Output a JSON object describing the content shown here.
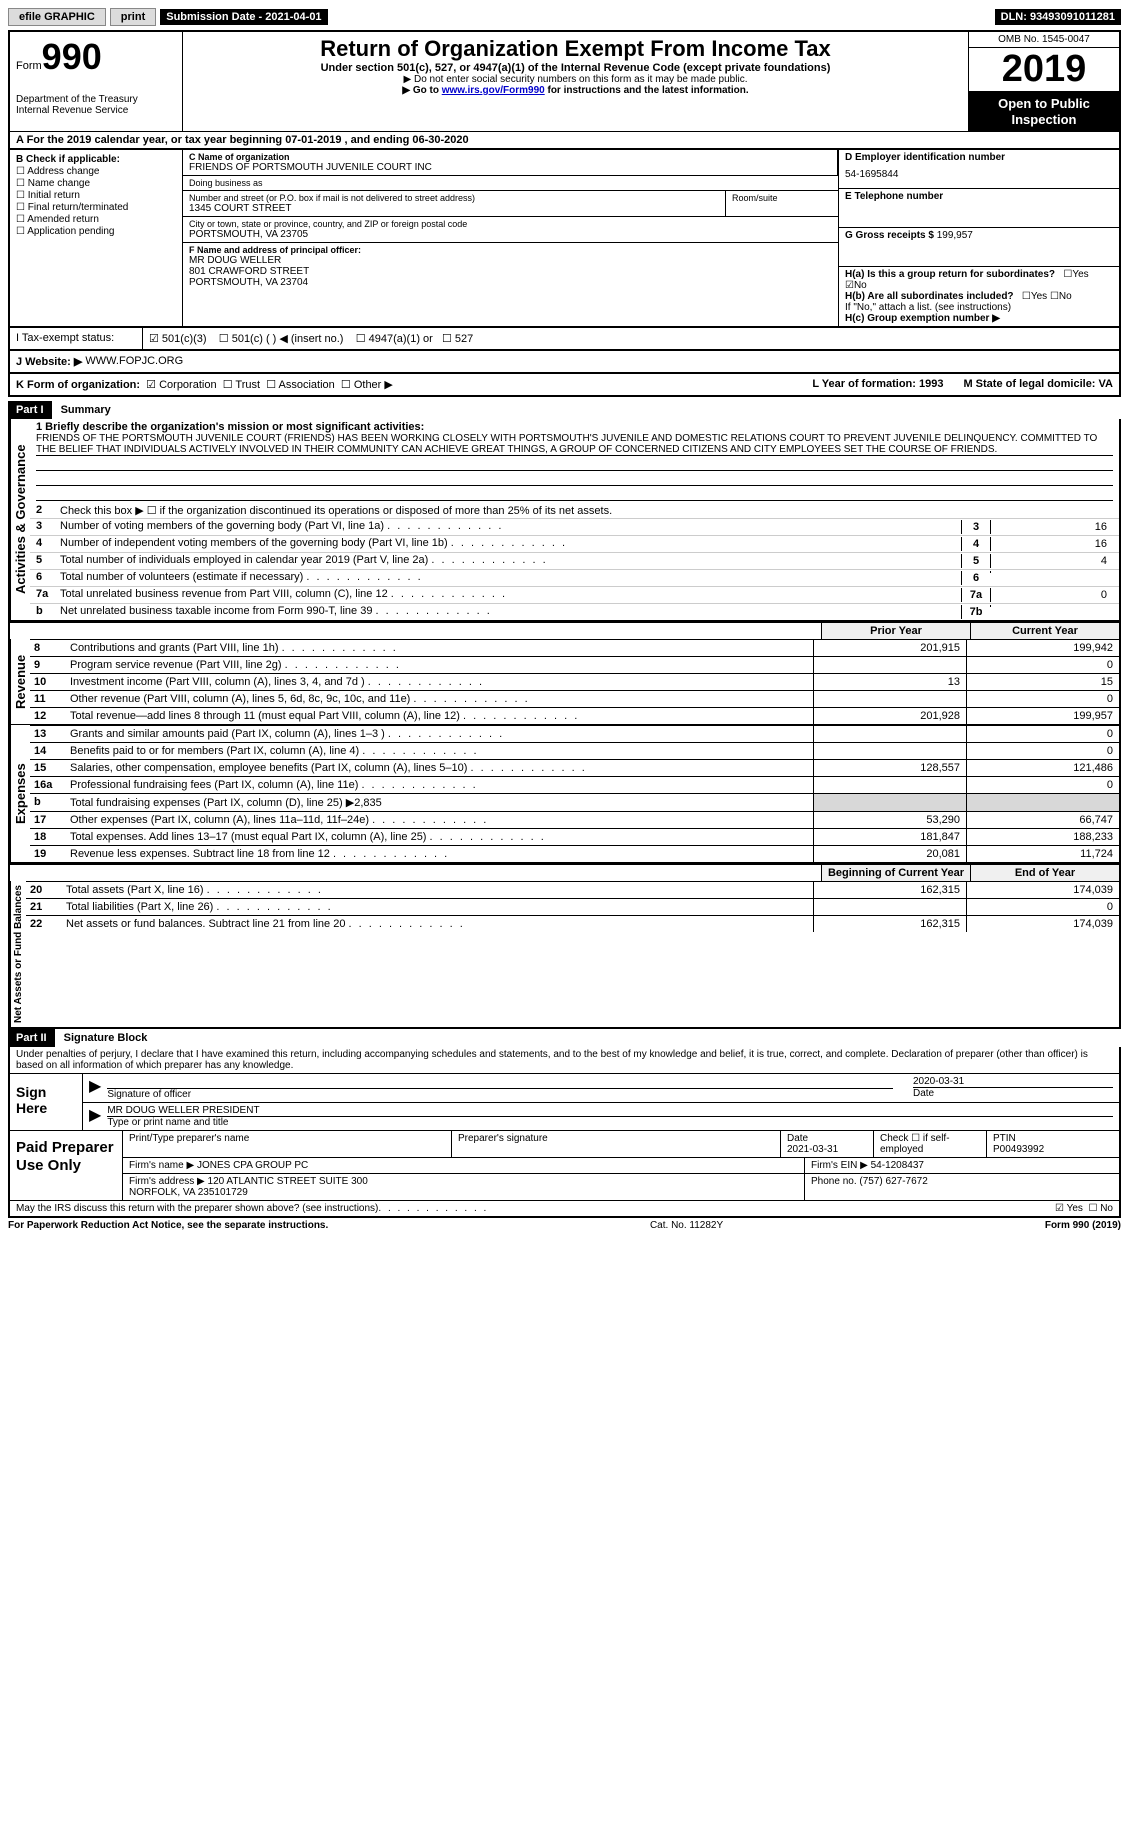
{
  "topbar": {
    "efile": "efile GRAPHIC",
    "print": "print",
    "sub_label": "Submission Date - ",
    "sub_date": "2021-04-01",
    "dln": "DLN: 93493091011281"
  },
  "header": {
    "form_label": "Form",
    "form_num": "990",
    "dept": "Department of the Treasury\nInternal Revenue Service",
    "title": "Return of Organization Exempt From Income Tax",
    "sub1": "Under section 501(c), 527, or 4947(a)(1) of the Internal Revenue Code (except private foundations)",
    "sub2": "▶ Do not enter social security numbers on this form as it may be made public.",
    "sub3_pre": "▶ Go to ",
    "sub3_link": "www.irs.gov/Form990",
    "sub3_post": " for instructions and the latest information.",
    "omb": "OMB No. 1545-0047",
    "year": "2019",
    "open": "Open to Public Inspection"
  },
  "cal_year": "A For the 2019 calendar year, or tax year beginning 07-01-2019  , and ending 06-30-2020",
  "box_b": {
    "hdr": "B Check if applicable:",
    "items": [
      "Address change",
      "Name change",
      "Initial return",
      "Final return/terminated",
      "Amended return",
      "Application pending"
    ]
  },
  "box_c": {
    "name_lbl": "C Name of organization",
    "name": "FRIENDS OF PORTSMOUTH JUVENILE COURT INC",
    "dba_lbl": "Doing business as",
    "dba": "",
    "street_lbl": "Number and street (or P.O. box if mail is not delivered to street address)",
    "street": "1345 COURT STREET",
    "room_lbl": "Room/suite",
    "city_lbl": "City or town, state or province, country, and ZIP or foreign postal code",
    "city": "PORTSMOUTH, VA  23705",
    "off_lbl": "F Name and address of principal officer:",
    "off": "MR DOUG WELLER\n801 CRAWFORD STREET\nPORTSMOUTH, VA  23704"
  },
  "box_d": {
    "d_lbl": "D Employer identification number",
    "d_val": "54-1695844",
    "e_lbl": "E Telephone number",
    "e_val": "",
    "g_lbl": "G Gross receipts $ ",
    "g_val": "199,957"
  },
  "box_h": {
    "ha": "H(a)  Is this a group return for subordinates?",
    "hb": "H(b)  Are all subordinates included?",
    "hb_note": "If \"No,\" attach a list. (see instructions)",
    "hc": "H(c)  Group exemption number ▶"
  },
  "tax_i": {
    "lbl": "I  Tax-exempt status:",
    "opts": [
      "501(c)(3)",
      "501(c) (  ) ◀ (insert no.)",
      "4947(a)(1) or",
      "527"
    ]
  },
  "j": {
    "lbl": "J  Website: ▶",
    "val": "WWW.FOPJC.ORG"
  },
  "k": {
    "lbl": "K Form of organization:",
    "opts": [
      "Corporation",
      "Trust",
      "Association",
      "Other ▶"
    ],
    "l": "L Year of formation: 1993",
    "m": "M State of legal domicile: VA"
  },
  "parts": {
    "p1": "Part I",
    "p1_title": "Summary",
    "p2": "Part II",
    "p2_title": "Signature Block"
  },
  "mission": {
    "lbl": "1  Briefly describe the organization's mission or most significant activities:",
    "text": "FRIENDS OF THE PORTSMOUTH JUVENILE COURT (FRIENDS) HAS BEEN WORKING CLOSELY WITH PORTSMOUTH'S JUVENILE AND DOMESTIC RELATIONS COURT TO PREVENT JUVENILE DELINQUENCY. COMMITTED TO THE BELIEF THAT INDIVIDUALS ACTIVELY INVOLVED IN THEIR COMMUNITY CAN ACHIEVE GREAT THINGS, A GROUP OF CONCERNED CITIZENS AND CITY EMPLOYEES SET THE COURSE OF FRIENDS."
  },
  "gov_lines": [
    {
      "n": "2",
      "t": "Check this box ▶ ☐ if the organization discontinued its operations or disposed of more than 25% of its net assets."
    },
    {
      "n": "3",
      "t": "Number of voting members of the governing body (Part VI, line 1a)",
      "num": "3",
      "v": "16"
    },
    {
      "n": "4",
      "t": "Number of independent voting members of the governing body (Part VI, line 1b)",
      "num": "4",
      "v": "16"
    },
    {
      "n": "5",
      "t": "Total number of individuals employed in calendar year 2019 (Part V, line 2a)",
      "num": "5",
      "v": "4"
    },
    {
      "n": "6",
      "t": "Total number of volunteers (estimate if necessary)",
      "num": "6",
      "v": ""
    },
    {
      "n": "7a",
      "t": "Total unrelated business revenue from Part VIII, column (C), line 12",
      "num": "7a",
      "v": "0"
    },
    {
      "n": "b",
      "t": "Net unrelated business taxable income from Form 990-T, line 39",
      "num": "7b",
      "v": ""
    }
  ],
  "fin_hdr": {
    "prior": "Prior Year",
    "current": "Current Year"
  },
  "revenue": [
    {
      "n": "8",
      "t": "Contributions and grants (Part VIII, line 1h)",
      "p": "201,915",
      "c": "199,942"
    },
    {
      "n": "9",
      "t": "Program service revenue (Part VIII, line 2g)",
      "p": "",
      "c": "0"
    },
    {
      "n": "10",
      "t": "Investment income (Part VIII, column (A), lines 3, 4, and 7d )",
      "p": "13",
      "c": "15"
    },
    {
      "n": "11",
      "t": "Other revenue (Part VIII, column (A), lines 5, 6d, 8c, 9c, 10c, and 11e)",
      "p": "",
      "c": "0"
    },
    {
      "n": "12",
      "t": "Total revenue—add lines 8 through 11 (must equal Part VIII, column (A), line 12)",
      "p": "201,928",
      "c": "199,957"
    }
  ],
  "expenses": [
    {
      "n": "13",
      "t": "Grants and similar amounts paid (Part IX, column (A), lines 1–3 )",
      "p": "",
      "c": "0"
    },
    {
      "n": "14",
      "t": "Benefits paid to or for members (Part IX, column (A), line 4)",
      "p": "",
      "c": "0"
    },
    {
      "n": "15",
      "t": "Salaries, other compensation, employee benefits (Part IX, column (A), lines 5–10)",
      "p": "128,557",
      "c": "121,486"
    },
    {
      "n": "16a",
      "t": "Professional fundraising fees (Part IX, column (A), line 11e)",
      "p": "",
      "c": "0"
    },
    {
      "n": "b",
      "t": "Total fundraising expenses (Part IX, column (D), line 25) ▶2,835",
      "shade": true
    },
    {
      "n": "17",
      "t": "Other expenses (Part IX, column (A), lines 11a–11d, 11f–24e)",
      "p": "53,290",
      "c": "66,747"
    },
    {
      "n": "18",
      "t": "Total expenses. Add lines 13–17 (must equal Part IX, column (A), line 25)",
      "p": "181,847",
      "c": "188,233"
    },
    {
      "n": "19",
      "t": "Revenue less expenses. Subtract line 18 from line 12",
      "p": "20,081",
      "c": "11,724"
    }
  ],
  "net_hdr": {
    "begin": "Beginning of Current Year",
    "end": "End of Year"
  },
  "net": [
    {
      "n": "20",
      "t": "Total assets (Part X, line 16)",
      "p": "162,315",
      "c": "174,039"
    },
    {
      "n": "21",
      "t": "Total liabilities (Part X, line 26)",
      "p": "",
      "c": "0"
    },
    {
      "n": "22",
      "t": "Net assets or fund balances. Subtract line 21 from line 20",
      "p": "162,315",
      "c": "174,039"
    }
  ],
  "sig": {
    "decl": "Under penalties of perjury, I declare that I have examined this return, including accompanying schedules and statements, and to the best of my knowledge and belief, it is true, correct, and complete. Declaration of preparer (other than officer) is based on all information of which preparer has any knowledge.",
    "sign_here": "Sign Here",
    "sig_of_officer": "Signature of officer",
    "date": "Date",
    "date_val": "2020-03-31",
    "name": "MR DOUG WELLER  PRESIDENT",
    "name_lbl": "Type or print name and title"
  },
  "paid": {
    "title": "Paid Preparer Use Only",
    "h1": "Print/Type preparer's name",
    "h2": "Preparer's signature",
    "h3": "Date",
    "h3v": "2021-03-31",
    "h4": "Check ☐ if self-employed",
    "h5": "PTIN",
    "h5v": "P00493992",
    "firm_name_lbl": "Firm's name    ▶",
    "firm_name": "JONES CPA GROUP PC",
    "firm_ein_lbl": "Firm's EIN ▶",
    "firm_ein": "54-1208437",
    "firm_addr_lbl": "Firm's address ▶",
    "firm_addr": "120 ATLANTIC STREET SUITE 300\nNORFOLK, VA  235101729",
    "phone_lbl": "Phone no.",
    "phone": "(757) 627-7672",
    "discuss": "May the IRS discuss this return with the preparer shown above? (see instructions)"
  },
  "footer": {
    "left": "For Paperwork Reduction Act Notice, see the separate instructions.",
    "mid": "Cat. No. 11282Y",
    "right": "Form 990 (2019)"
  },
  "side_labels": {
    "gov": "Activities & Governance",
    "rev": "Revenue",
    "exp": "Expenses",
    "net": "Net Assets or Fund Balances"
  }
}
